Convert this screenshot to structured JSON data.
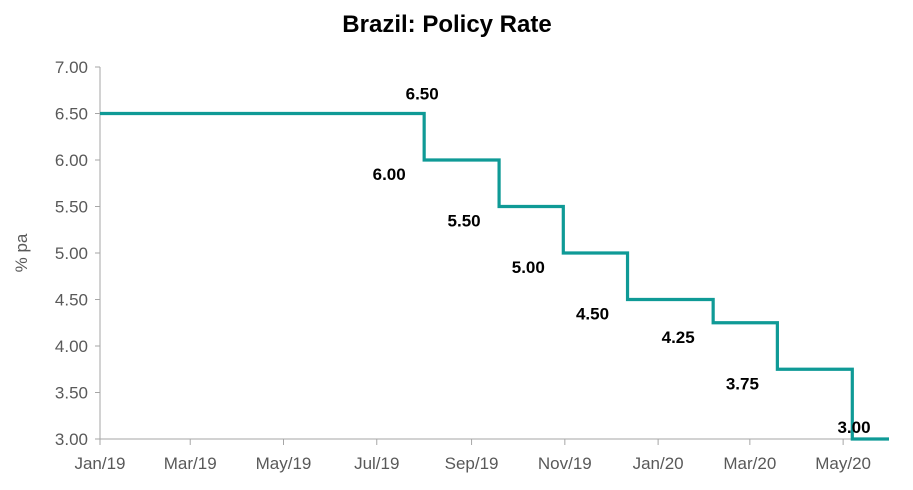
{
  "chart_data": {
    "type": "line",
    "title": "Brazil: Policy Rate",
    "ylabel": "% pa",
    "xlabel": "",
    "ylim": [
      3.0,
      7.0
    ],
    "yticks": [
      "7.00",
      "6.50",
      "6.00",
      "5.50",
      "5.00",
      "4.50",
      "4.00",
      "3.50",
      "3.00"
    ],
    "yticks_values": [
      7.0,
      6.5,
      6.0,
      5.5,
      5.0,
      4.5,
      4.0,
      3.5,
      3.0
    ],
    "xlim": [
      "2019-01-01",
      "2020-05-31"
    ],
    "xticks": [
      "Jan/19",
      "Mar/19",
      "May/19",
      "Jul/19",
      "Sep/19",
      "Nov/19",
      "Jan/20",
      "Mar/20",
      "May/20"
    ],
    "xticks_dates": [
      "2019-01-01",
      "2019-03-01",
      "2019-05-01",
      "2019-07-01",
      "2019-09-01",
      "2019-11-01",
      "2020-01-01",
      "2020-03-01",
      "2020-05-01"
    ],
    "grid": false,
    "line_color": "#0f9a96",
    "series": [
      {
        "step": "post",
        "points": [
          {
            "x": "2019-01-01",
            "y": 6.5
          },
          {
            "x": "2019-08-01",
            "y": 6.0
          },
          {
            "x": "2019-09-19",
            "y": 5.5
          },
          {
            "x": "2019-10-31",
            "y": 5.0
          },
          {
            "x": "2019-12-12",
            "y": 4.5
          },
          {
            "x": "2020-02-06",
            "y": 4.25
          },
          {
            "x": "2020-03-19",
            "y": 3.75
          },
          {
            "x": "2020-05-07",
            "y": 3.0
          }
        ]
      }
    ],
    "data_labels": [
      {
        "text": "6.50",
        "y": 6.5
      },
      {
        "text": "6.00",
        "y": 6.0
      },
      {
        "text": "5.50",
        "y": 5.5
      },
      {
        "text": "5.00",
        "y": 5.0
      },
      {
        "text": "4.50",
        "y": 4.5
      },
      {
        "text": "4.25",
        "y": 4.25
      },
      {
        "text": "3.75",
        "y": 3.75
      },
      {
        "text": "3.00",
        "y": 3.0
      }
    ]
  }
}
